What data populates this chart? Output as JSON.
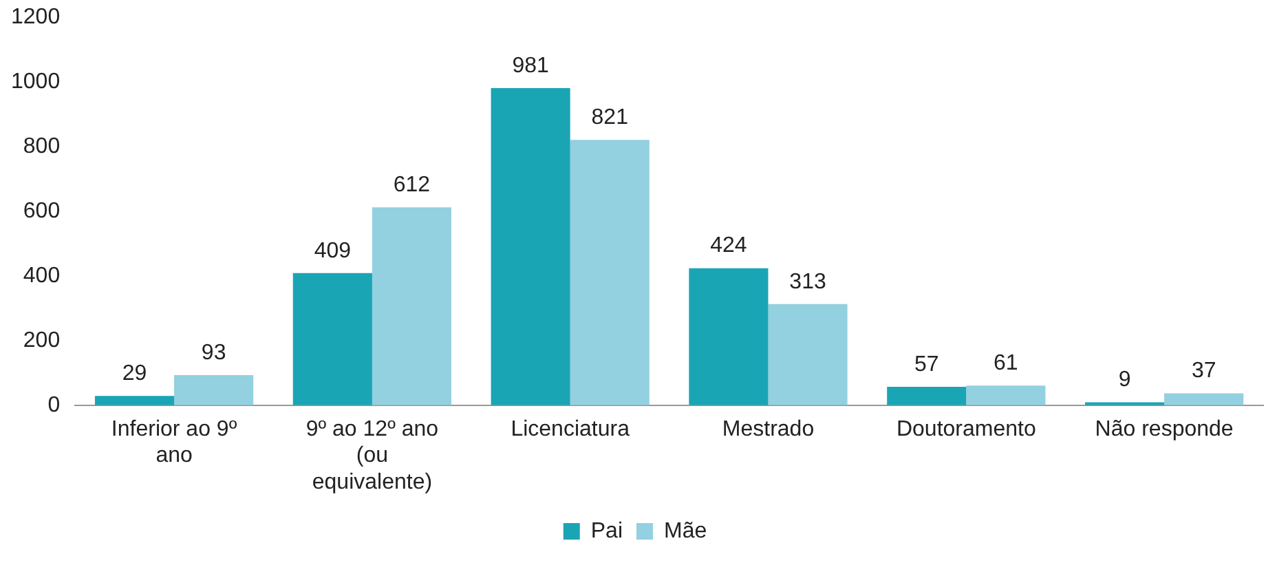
{
  "chart_data": {
    "type": "bar",
    "categories": [
      "Inferior ao 9º ano",
      "9º ao 12º ano (ou equivalente)",
      "Licenciatura",
      "Mestrado",
      "Doutoramento",
      "Não responde"
    ],
    "series": [
      {
        "name": "Pai",
        "color": "#1aa5b5",
        "values": [
          29,
          409,
          981,
          424,
          57,
          9
        ]
      },
      {
        "name": "Mãe",
        "color": "#93d0e0",
        "values": [
          93,
          612,
          821,
          313,
          61,
          37
        ]
      }
    ],
    "ylim": [
      0,
      1200
    ],
    "yticks": [
      0,
      200,
      400,
      600,
      800,
      1000,
      1200
    ],
    "grid": false,
    "legend": "bottom",
    "data_labels": true
  }
}
